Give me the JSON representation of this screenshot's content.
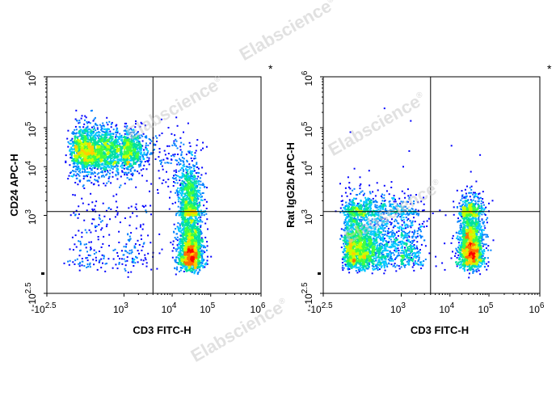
{
  "colors": {
    "frame": "#000000",
    "gate": "#000000",
    "watermark": "#c8c8c8",
    "density": [
      "#0000ff",
      "#0080ff",
      "#00c8ff",
      "#00e0a0",
      "#40ff40",
      "#c8ff00",
      "#ffd000",
      "#ff7000",
      "#ff0000"
    ]
  },
  "watermark": {
    "text": "Elabscience",
    "mark": "®"
  },
  "chart_data": [
    {
      "type": "scatter",
      "xlabel": "CD3 FITC-H",
      "ylabel": "CD24 APC-H",
      "corner_mark": "*",
      "x_ticks": [
        {
          "base": "-10",
          "exp": "2.5"
        },
        {
          "base": "10",
          "exp": "3"
        },
        {
          "base": "10",
          "exp": "4"
        },
        {
          "base": "10",
          "exp": "5"
        },
        {
          "base": "10",
          "exp": "6"
        }
      ],
      "y_ticks": [
        {
          "base": "-10",
          "exp": "2.5"
        },
        {
          "base": "10",
          "exp": "3"
        },
        {
          "base": "10",
          "exp": "4"
        },
        {
          "base": "10",
          "exp": "5"
        },
        {
          "base": "10",
          "exp": "6"
        }
      ],
      "quadrant_gate": {
        "x": 4000,
        "y": 1200
      },
      "populations": [
        {
          "cx": 600,
          "cy": 25000,
          "sx": 0.3,
          "sy": 0.3,
          "n": 2600
        },
        {
          "cx": 30000,
          "cy": 500,
          "sx": 0.16,
          "sy": 0.32,
          "n": 1900
        },
        {
          "cx": 28000,
          "cy": 3500,
          "sx": 0.15,
          "sy": 0.28,
          "n": 500
        },
        {
          "cx": 700,
          "cy": 500,
          "sx": 0.4,
          "sy": 0.4,
          "n": 260
        },
        {
          "cx": 12000,
          "cy": 15000,
          "sx": 0.35,
          "sy": 0.45,
          "n": 140
        }
      ]
    },
    {
      "type": "scatter",
      "xlabel": "CD3 FITC-H",
      "ylabel": "Rat IgG2b APC-H",
      "corner_mark": "*",
      "x_ticks": [
        {
          "base": "-10",
          "exp": "2.5"
        },
        {
          "base": "10",
          "exp": "3"
        },
        {
          "base": "10",
          "exp": "4"
        },
        {
          "base": "10",
          "exp": "5"
        },
        {
          "base": "10",
          "exp": "6"
        }
      ],
      "y_ticks": [
        {
          "base": "-10",
          "exp": "2.5"
        },
        {
          "base": "10",
          "exp": "3"
        },
        {
          "base": "10",
          "exp": "4"
        },
        {
          "base": "10",
          "exp": "5"
        },
        {
          "base": "10",
          "exp": "6"
        }
      ],
      "quadrant_gate": {
        "x": 4000,
        "y": 1200
      },
      "populations": [
        {
          "cx": 400,
          "cy": 550,
          "sx": 0.38,
          "sy": 0.3,
          "n": 2800
        },
        {
          "cx": 35000,
          "cy": 550,
          "sx": 0.16,
          "sy": 0.3,
          "n": 2000
        },
        {
          "cx": 2500,
          "cy": 30000,
          "sx": 0.8,
          "sy": 0.6,
          "n": 8
        }
      ]
    }
  ]
}
